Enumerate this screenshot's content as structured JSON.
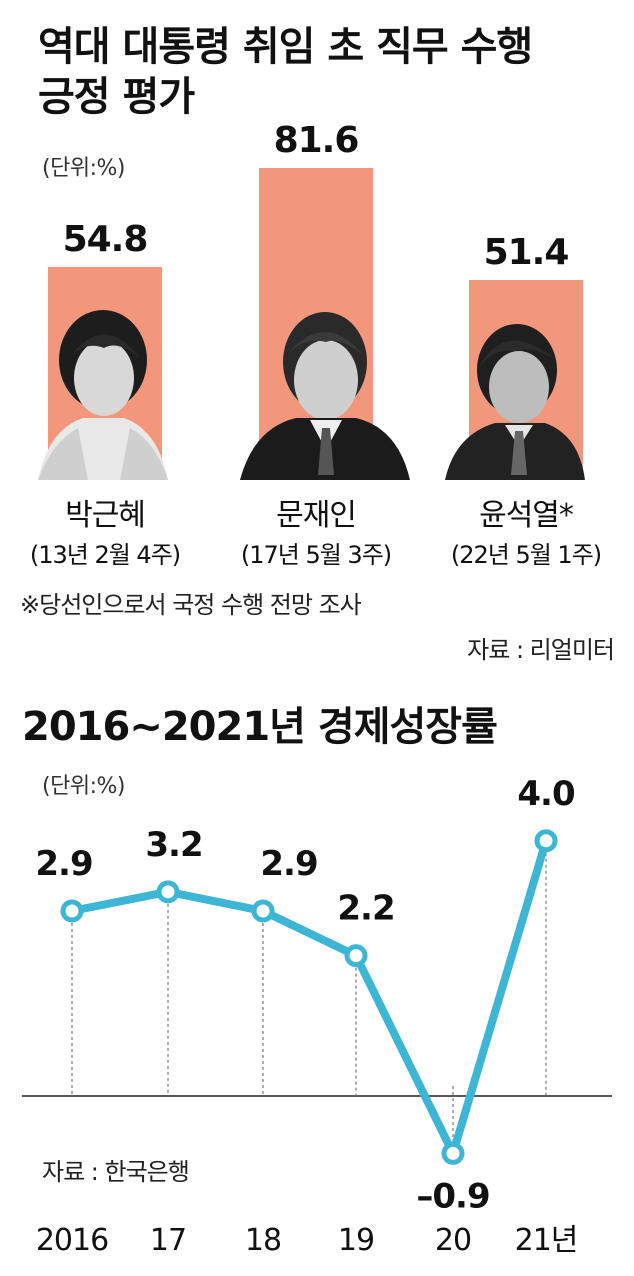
{
  "chart_data": [
    {
      "type": "bar",
      "title": "역대 대통령 취임 초 직무 수행 긍정 평가",
      "unit": "(단위:%)",
      "categories": [
        "박근혜",
        "문재인",
        "윤석열*"
      ],
      "periods": [
        "(13년 2월 4주)",
        "(17년 5월 3주)",
        "(22년 5월 1주)"
      ],
      "values": [
        54.8,
        81.6,
        51.4
      ],
      "value_labels": [
        "54.8",
        "81.6",
        "51.4"
      ],
      "ylim": [
        0,
        100
      ],
      "color": "#f2977c",
      "note": "※당선인으로서 국정 수행 전망 조사",
      "source": "자료 : 리얼미터"
    },
    {
      "type": "line",
      "title": "2016~2021년 경제성장률",
      "unit": "(단위:%)",
      "categories": [
        "2016",
        "17",
        "18",
        "19",
        "20",
        "21년"
      ],
      "values": [
        2.9,
        3.2,
        2.9,
        2.2,
        -0.9,
        4.0
      ],
      "value_labels": [
        "2.9",
        "3.2",
        "2.9",
        "2.2",
        "–0.9",
        "4.0"
      ],
      "ylim": [
        -0.9,
        4.0
      ],
      "color": "#3db6d5",
      "source": "자료 : 한국은행"
    }
  ]
}
